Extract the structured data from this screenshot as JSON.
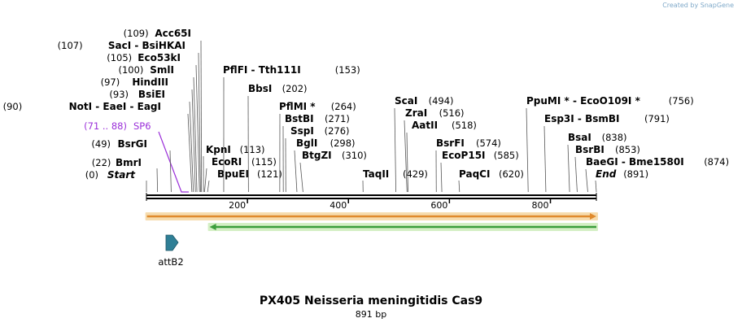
{
  "credit": {
    "prefix": "Created by",
    "brand": "SnapGene"
  },
  "plasmid": {
    "name": "PX405 Neisseria meningitidis Cas9",
    "length": "891 bp",
    "bp": 891
  },
  "features": [
    {
      "name": "SP6",
      "range": "(71 .. 88)",
      "start": 71,
      "end": 88,
      "color": "#9b30d9"
    },
    {
      "name": "attB2",
      "start": 49,
      "end": 70,
      "color": "#2f7f96"
    },
    {
      "name": "orange-arrow",
      "start": 1,
      "end": 891,
      "color": "#e08a2c"
    },
    {
      "name": "green-arrow",
      "start": 125,
      "end": 891,
      "color": "#3c9e3c"
    }
  ],
  "sites": [
    {
      "pos": 0,
      "pos_text": "(0)",
      "names": [
        "Start"
      ],
      "italic": true,
      "side": "left"
    },
    {
      "pos": 22,
      "pos_text": "(22)",
      "names": [
        "BmrI"
      ],
      "side": "left"
    },
    {
      "pos": 49,
      "pos_text": "(49)",
      "names": [
        "BsrGI"
      ],
      "side": "left"
    },
    {
      "pos": 90,
      "pos_text": "(90)",
      "names": [
        "NotI",
        "EaeI",
        "EagI"
      ],
      "side": "left"
    },
    {
      "pos": 93,
      "pos_text": "(93)",
      "names": [
        "BsiEI"
      ],
      "side": "left"
    },
    {
      "pos": 97,
      "pos_text": "(97)",
      "names": [
        "HindIII"
      ],
      "side": "left"
    },
    {
      "pos": 100,
      "pos_text": "(100)",
      "names": [
        "SmlI"
      ],
      "side": "left"
    },
    {
      "pos": 105,
      "pos_text": "(105)",
      "names": [
        "Eco53kI"
      ],
      "side": "left"
    },
    {
      "pos": 107,
      "pos_text": "(107)",
      "names": [
        "SacI",
        "BsiHKAI"
      ],
      "side": "left"
    },
    {
      "pos": 109,
      "pos_text": "(109)",
      "names": [
        "Acc65I"
      ],
      "side": "left"
    },
    {
      "pos": 113,
      "pos_text": "(113)",
      "names": [
        "KpnI"
      ],
      "side": "right"
    },
    {
      "pos": 115,
      "pos_text": "(115)",
      "names": [
        "EcoRI"
      ],
      "side": "right"
    },
    {
      "pos": 121,
      "pos_text": "(121)",
      "names": [
        "BpuEI"
      ],
      "side": "right"
    },
    {
      "pos": 153,
      "pos_text": "(153)",
      "names": [
        "PflFI",
        "Tth111I"
      ],
      "side": "right"
    },
    {
      "pos": 202,
      "pos_text": "(202)",
      "names": [
        "BbsI"
      ],
      "side": "right"
    },
    {
      "pos": 264,
      "pos_text": "(264)",
      "names": [
        "PflMI *"
      ],
      "side": "right"
    },
    {
      "pos": 271,
      "pos_text": "(271)",
      "names": [
        "BstBI"
      ],
      "side": "right"
    },
    {
      "pos": 276,
      "pos_text": "(276)",
      "names": [
        "SspI"
      ],
      "side": "right"
    },
    {
      "pos": 298,
      "pos_text": "(298)",
      "names": [
        "BglI"
      ],
      "side": "right"
    },
    {
      "pos": 310,
      "pos_text": "(310)",
      "names": [
        "BtgZI"
      ],
      "side": "right"
    },
    {
      "pos": 429,
      "pos_text": "(429)",
      "names": [
        "TaqII"
      ],
      "side": "right"
    },
    {
      "pos": 494,
      "pos_text": "(494)",
      "names": [
        "ScaI"
      ],
      "side": "right"
    },
    {
      "pos": 516,
      "pos_text": "(516)",
      "names": [
        "ZraI"
      ],
      "side": "right"
    },
    {
      "pos": 518,
      "pos_text": "(518)",
      "names": [
        "AatII"
      ],
      "side": "right"
    },
    {
      "pos": 574,
      "pos_text": "(574)",
      "names": [
        "BsrFI"
      ],
      "side": "right"
    },
    {
      "pos": 585,
      "pos_text": "(585)",
      "names": [
        "EcoP15I"
      ],
      "side": "right"
    },
    {
      "pos": 620,
      "pos_text": "(620)",
      "names": [
        "PaqCI"
      ],
      "side": "right"
    },
    {
      "pos": 756,
      "pos_text": "(756)",
      "names": [
        "PpuMI *",
        "EcoO109I *"
      ],
      "side": "right"
    },
    {
      "pos": 791,
      "pos_text": "(791)",
      "names": [
        "Esp3I",
        "BsmBI"
      ],
      "side": "right"
    },
    {
      "pos": 838,
      "pos_text": "(838)",
      "names": [
        "BsaI"
      ],
      "side": "right"
    },
    {
      "pos": 853,
      "pos_text": "(853)",
      "names": [
        "BsrBI"
      ],
      "side": "right"
    },
    {
      "pos": 874,
      "pos_text": "(874)",
      "names": [
        "BaeGI",
        "Bme1580I"
      ],
      "side": "right"
    },
    {
      "pos": 891,
      "pos_text": "(891)",
      "names": [
        "End"
      ],
      "italic": true,
      "side": "right"
    }
  ],
  "ruler": {
    "ticks": [
      200,
      400,
      600,
      800
    ]
  }
}
